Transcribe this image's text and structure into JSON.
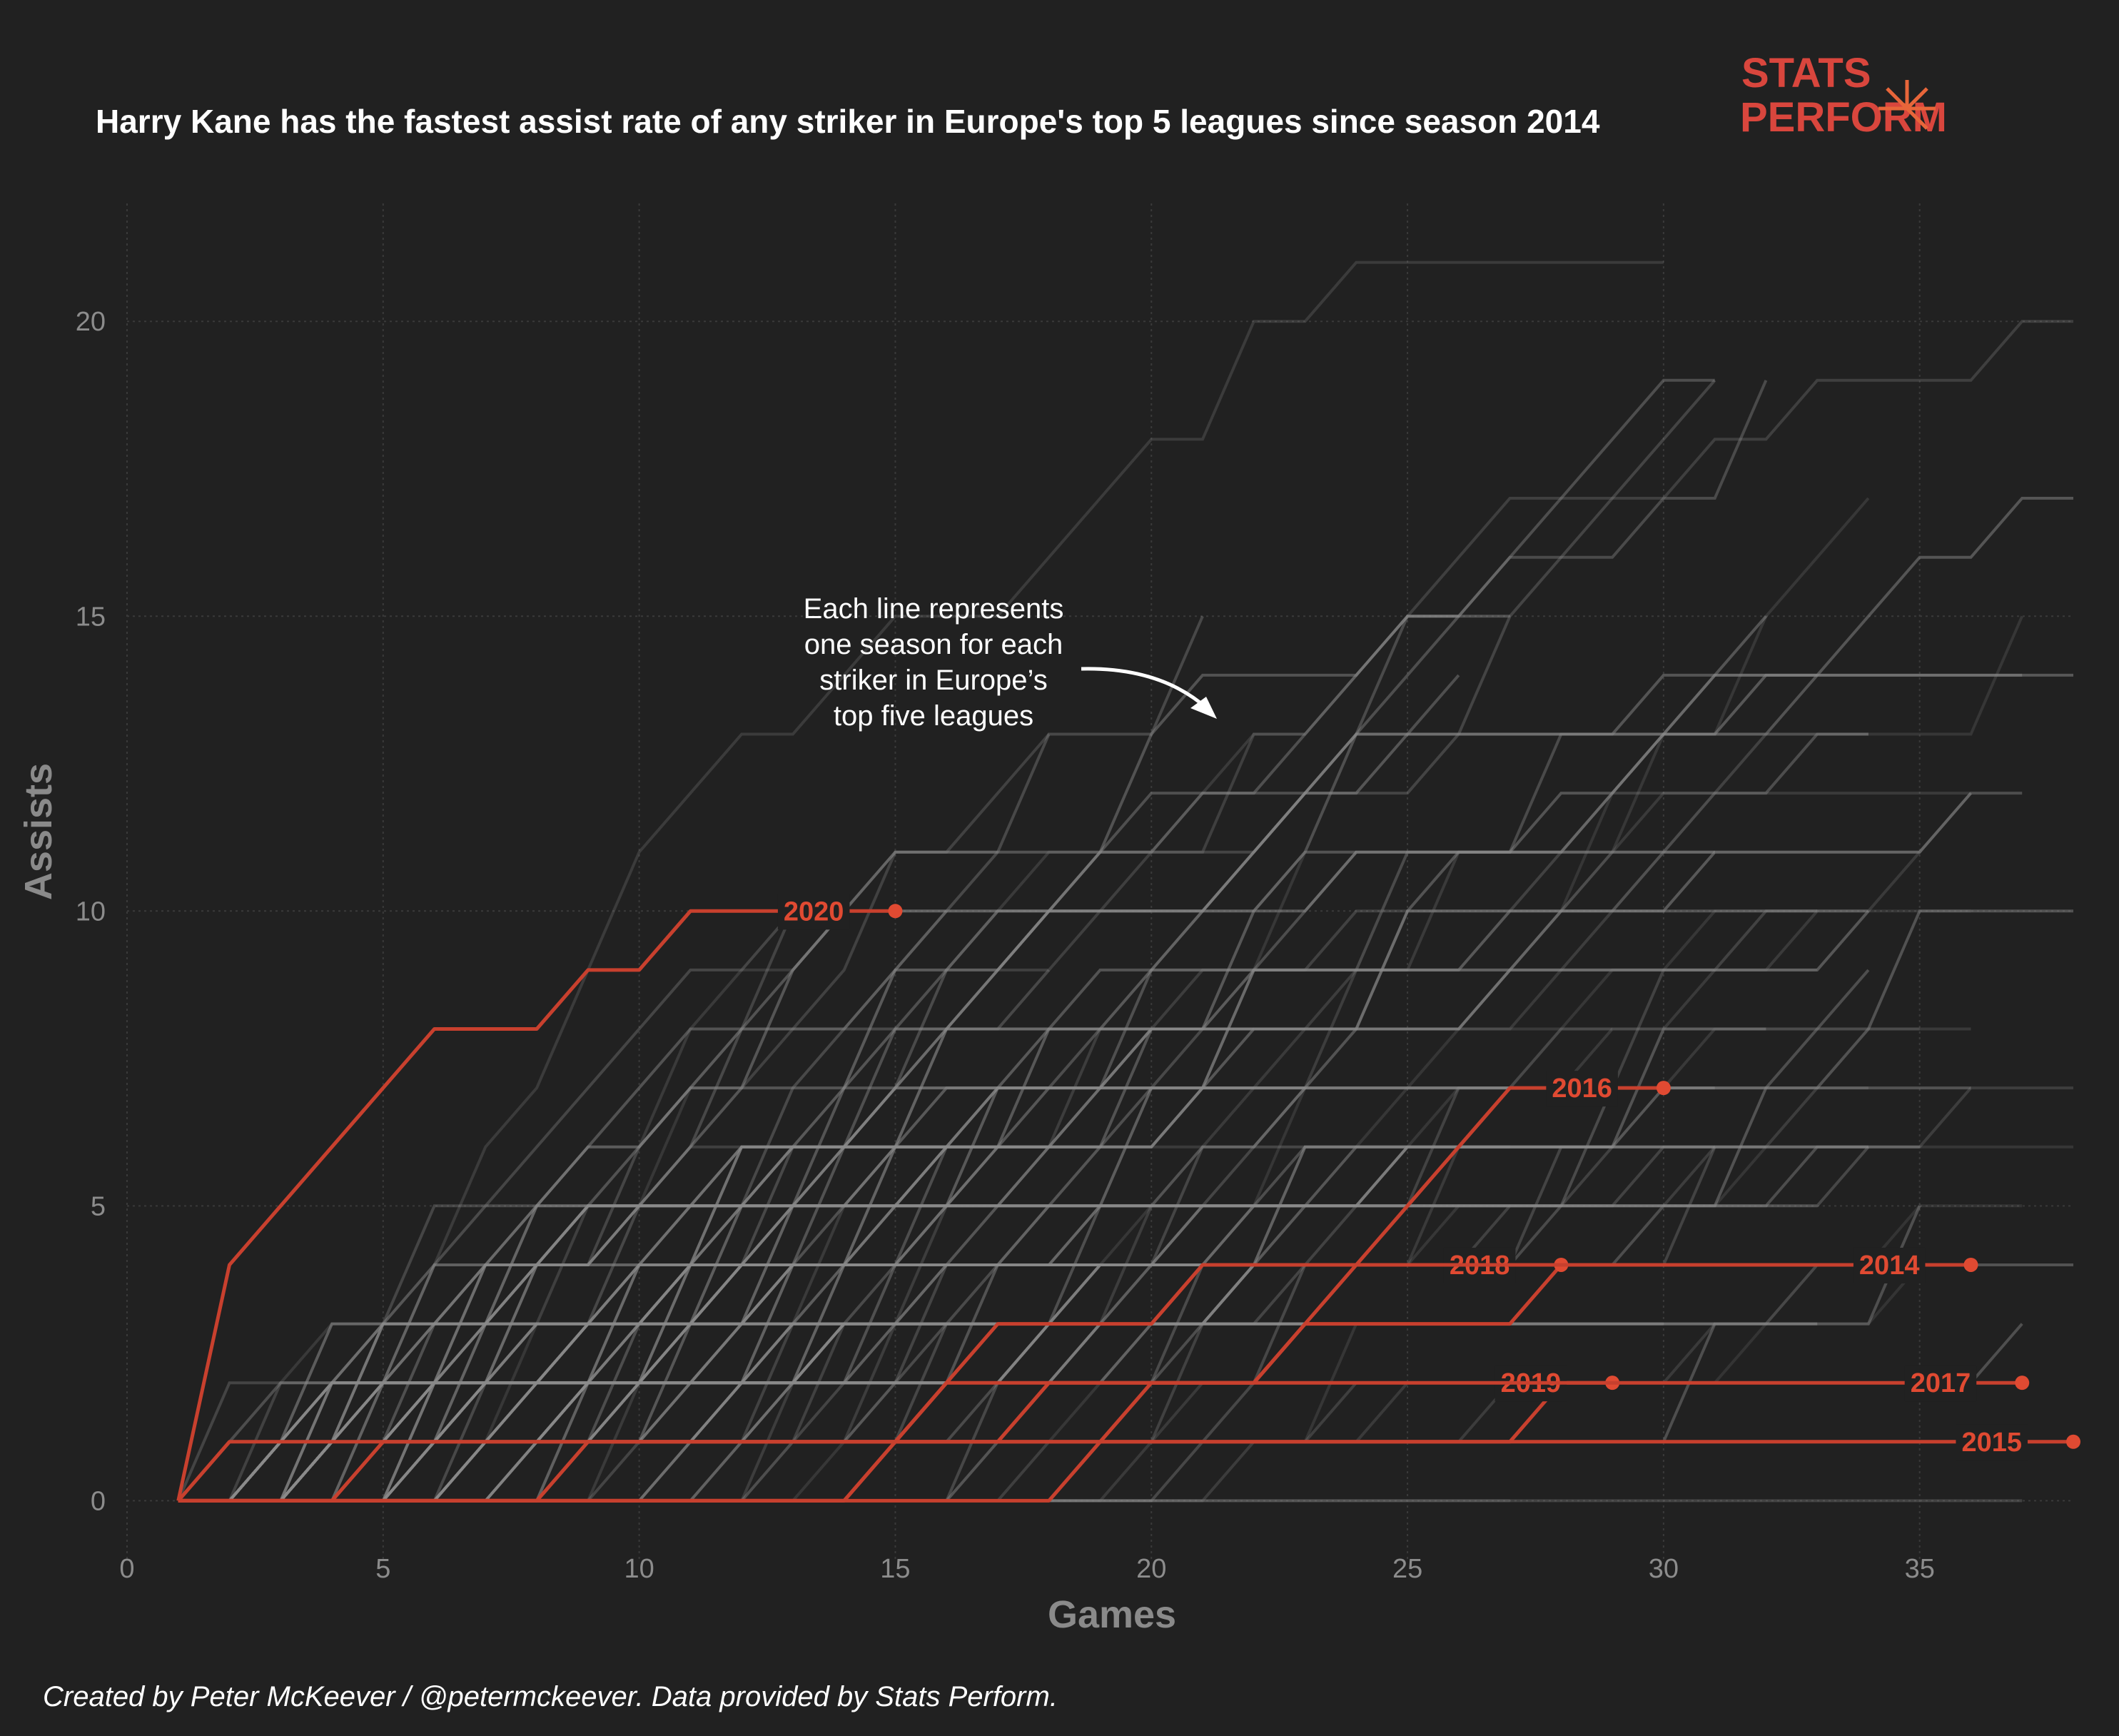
{
  "title": "Harry Kane has the fastest assist rate of any striker in Europe's top 5 leagues since season 2014",
  "logo": {
    "line1": "STATS",
    "line2": "PERFORM"
  },
  "annotation": [
    "Each line represents",
    "one season for each",
    "striker in Europe’s",
    "top five leagues"
  ],
  "caption": "Created by Peter McKeever / @petermckeever. Data provided by Stats Perform.",
  "colors": {
    "background": "#212121",
    "highlight": "#c8402e",
    "label": "#e04a32",
    "background_lines": "#8a8a8a"
  },
  "chart_data": {
    "type": "line",
    "title": "Harry Kane has the fastest assist rate of any striker in Europe's top 5 leagues since season 2014",
    "xlabel": "Games",
    "ylabel": "Assists",
    "xlim": [
      0,
      38
    ],
    "ylim": [
      -1,
      22
    ],
    "xticks": [
      0,
      5,
      10,
      15,
      20,
      25,
      30,
      35
    ],
    "yticks": [
      0,
      5,
      10,
      15,
      20
    ],
    "grid": true,
    "series": [
      {
        "name": "2020",
        "x": [
          1,
          2,
          3,
          4,
          5,
          6,
          7,
          8,
          9,
          10,
          11,
          12,
          13,
          14,
          15
        ],
        "y": [
          0,
          4,
          5,
          6,
          7,
          8,
          8,
          8,
          9,
          9,
          10,
          10,
          10,
          10,
          10
        ]
      },
      {
        "name": "2016",
        "x": [
          1,
          2,
          3,
          4,
          5,
          6,
          7,
          8,
          9,
          10,
          11,
          12,
          13,
          14,
          15,
          16,
          17,
          18,
          19,
          20,
          21,
          22,
          23,
          24,
          25,
          26,
          27,
          28,
          29,
          30
        ],
        "y": [
          0,
          0,
          0,
          0,
          0,
          0,
          0,
          0,
          0,
          0,
          0,
          0,
          0,
          0,
          1,
          2,
          2,
          2,
          2,
          2,
          2,
          2,
          3,
          4,
          5,
          6,
          7,
          7,
          7,
          7
        ]
      },
      {
        "name": "2018",
        "x": [
          1,
          2,
          3,
          4,
          5,
          6,
          7,
          8,
          9,
          10,
          11,
          12,
          13,
          14,
          15,
          16,
          17,
          18,
          19,
          20,
          21,
          22,
          23,
          24,
          25,
          26,
          27,
          28
        ],
        "y": [
          0,
          0,
          0,
          0,
          0,
          0,
          0,
          0,
          0,
          0,
          0,
          0,
          0,
          0,
          1,
          1,
          1,
          2,
          2,
          2,
          2,
          2,
          3,
          3,
          3,
          3,
          3,
          4
        ]
      },
      {
        "name": "2014",
        "x": [
          1,
          2,
          3,
          4,
          5,
          6,
          7,
          8,
          9,
          10,
          11,
          12,
          13,
          14,
          15,
          16,
          17,
          18,
          19,
          20,
          21,
          22,
          23,
          24,
          25,
          26,
          27,
          28,
          29,
          30,
          31,
          32,
          33,
          34,
          35,
          36
        ],
        "y": [
          0,
          0,
          0,
          0,
          1,
          1,
          1,
          1,
          1,
          1,
          1,
          1,
          1,
          1,
          1,
          2,
          3,
          3,
          3,
          3,
          4,
          4,
          4,
          4,
          4,
          4,
          4,
          4,
          4,
          4,
          4,
          4,
          4,
          4,
          4,
          4
        ]
      },
      {
        "name": "2019",
        "x": [
          1,
          2,
          3,
          4,
          5,
          6,
          7,
          8,
          9,
          10,
          11,
          12,
          13,
          14,
          15,
          16,
          17,
          18,
          19,
          20,
          21,
          22,
          23,
          24,
          25,
          26,
          27,
          28,
          29
        ],
        "y": [
          0,
          0,
          0,
          0,
          0,
          0,
          0,
          0,
          1,
          1,
          1,
          1,
          1,
          1,
          1,
          1,
          1,
          1,
          1,
          1,
          1,
          1,
          1,
          1,
          1,
          1,
          1,
          2,
          2
        ]
      },
      {
        "name": "2017",
        "x": [
          1,
          2,
          3,
          4,
          5,
          6,
          7,
          8,
          9,
          10,
          11,
          12,
          13,
          14,
          15,
          16,
          17,
          18,
          19,
          20,
          21,
          22,
          23,
          24,
          25,
          26,
          27,
          28,
          29,
          30,
          31,
          32,
          33,
          34,
          35,
          36,
          37
        ],
        "y": [
          0,
          0,
          0,
          0,
          0,
          0,
          0,
          0,
          0,
          0,
          0,
          0,
          0,
          0,
          0,
          0,
          0,
          0,
          1,
          2,
          2,
          2,
          2,
          2,
          2,
          2,
          2,
          2,
          2,
          2,
          2,
          2,
          2,
          2,
          2,
          2,
          2
        ]
      },
      {
        "name": "2015",
        "x": [
          1,
          2,
          38
        ],
        "y": [
          0,
          1,
          1
        ]
      }
    ]
  }
}
